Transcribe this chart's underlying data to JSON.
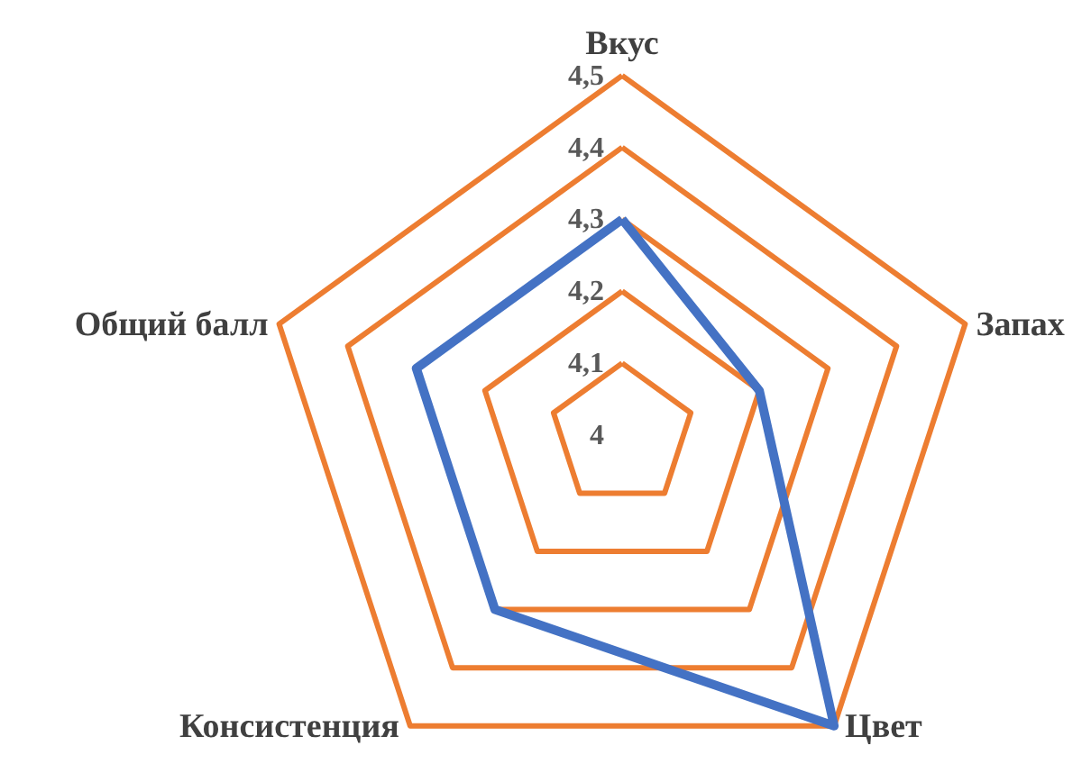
{
  "chart_data": {
    "type": "radar",
    "categories": [
      "Вкус",
      "Запах",
      "Цвет",
      "Консистенция",
      "Общий балл"
    ],
    "series": [
      {
        "color": "#4472c4",
        "values": [
          4.3,
          4.2,
          4.5,
          4.3,
          4.3
        ]
      }
    ],
    "ylim": [
      4,
      4.5
    ],
    "yticks": [
      {
        "value": 4,
        "label": "4"
      },
      {
        "value": 4.1,
        "label": "4,1"
      },
      {
        "value": 4.2,
        "label": "4,2"
      },
      {
        "value": 4.3,
        "label": "4,3"
      },
      {
        "value": 4.4,
        "label": "4,4"
      },
      {
        "value": 4.5,
        "label": "4,5"
      }
    ],
    "grid": true
  }
}
